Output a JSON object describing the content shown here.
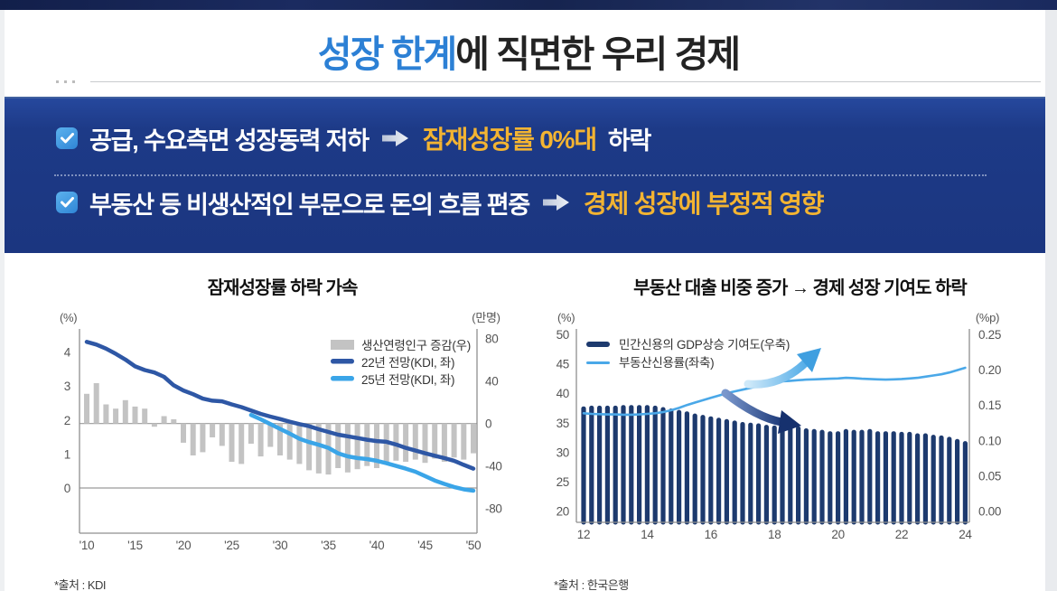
{
  "header": {
    "title_highlight": "성장 한계",
    "title_rest": "에 직면한 우리 경제"
  },
  "banner": {
    "items": [
      {
        "pre": "공급, 수요측면 ",
        "strong": "성장동력",
        "post": " 저하",
        "result_em": "잠재성장률 0%대",
        "result_post": " 하락"
      },
      {
        "pre": "부동산 등 ",
        "strong": "비생산적인 부문",
        "post": "으로 돈의 흐름 편중",
        "result_em": "경제 성장에 부정적 영향",
        "result_post": ""
      }
    ]
  },
  "chart_data": [
    {
      "type": "bar+line",
      "title": "잠재성장률 하락 가속",
      "source": "*출처 : KDI",
      "left_axis": {
        "unit": "(%)",
        "ticks": [
          4,
          3,
          2,
          1,
          0
        ]
      },
      "right_axis": {
        "unit": "(만명)",
        "ticks": [
          80,
          40,
          0,
          -40,
          -80
        ]
      },
      "x_tick_years": [
        2010,
        2015,
        2020,
        2025,
        2030,
        2035,
        2040,
        2045,
        2050
      ],
      "x_tick_labels": [
        "'10",
        "'15",
        "'20",
        "'25",
        "'30",
        "'35",
        "'40",
        "'45",
        "'50"
      ],
      "bars": {
        "label": "생산연령인구 증감(우)",
        "axis": "right",
        "color": "#c3c3c3",
        "start_year": 2010,
        "step": 1,
        "values": [
          28,
          38,
          18,
          14,
          22,
          16,
          14,
          -3,
          7,
          4,
          -18,
          -30,
          -27,
          -13,
          -21,
          -36,
          -38,
          -19,
          -31,
          -22,
          -30,
          -34,
          -38,
          -44,
          -47,
          -48,
          -42,
          -46,
          -43,
          -40,
          -42,
          -38,
          -35,
          -36,
          -34,
          -37,
          -33,
          -36,
          -32,
          -34,
          -28
        ]
      },
      "series": [
        {
          "label": "22년 전망(KDI, 좌)",
          "axis": "left",
          "color": "#2e57a5",
          "start_year": 2010,
          "step": 1,
          "values": [
            4.3,
            4.22,
            4.1,
            3.95,
            3.78,
            3.58,
            3.47,
            3.4,
            3.27,
            3.02,
            2.87,
            2.76,
            2.63,
            2.57,
            2.55,
            2.46,
            2.38,
            2.28,
            2.18,
            2.1,
            2.03,
            1.95,
            1.88,
            1.82,
            1.73,
            1.65,
            1.57,
            1.52,
            1.47,
            1.42,
            1.38,
            1.36,
            1.28,
            1.18,
            1.1,
            1.02,
            0.95,
            0.88,
            0.8,
            0.68,
            0.57
          ]
        },
        {
          "label": "25년 전망(KDI, 좌)",
          "axis": "left",
          "color": "#3aa5e8",
          "start_year": 2027,
          "step": 1,
          "values": [
            2.15,
            2.02,
            1.88,
            1.74,
            1.6,
            1.45,
            1.35,
            1.27,
            1.18,
            1.02,
            0.93,
            0.88,
            0.85,
            0.8,
            0.73,
            0.65,
            0.57,
            0.48,
            0.35,
            0.22,
            0.12,
            0.03,
            -0.04,
            -0.08
          ]
        }
      ]
    },
    {
      "type": "bar+line",
      "title": "부동산 대출 비중 증가 → 경제 성장 기여도 하락",
      "source": "*출처 : 한국은행",
      "left_axis": {
        "unit": "(%)",
        "ticks": [
          50,
          45,
          40,
          35,
          30,
          25,
          20
        ]
      },
      "right_axis": {
        "unit": "(%p)",
        "ticks": [
          "0.25",
          "0.20",
          "0.15",
          "0.10",
          "0.05",
          "0.00"
        ]
      },
      "x_tick_years": [
        2012,
        2014,
        2016,
        2018,
        2020,
        2022,
        2024
      ],
      "x_tick_labels": [
        "12",
        "14",
        "16",
        "18",
        "20",
        "22",
        "24"
      ],
      "bars": {
        "label": "민간신용의 GDP상승 기여도(우축)",
        "axis": "right",
        "color": "#1d3a6e",
        "start_year": 2012,
        "step": 0.25,
        "values": [
          0.148,
          0.149,
          0.149,
          0.149,
          0.149,
          0.15,
          0.15,
          0.15,
          0.15,
          0.149,
          0.147,
          0.145,
          0.143,
          0.141,
          0.138,
          0.136,
          0.134,
          0.132,
          0.13,
          0.128,
          0.126,
          0.125,
          0.124,
          0.122,
          0.121,
          0.121,
          0.12,
          0.12,
          0.117,
          0.116,
          0.115,
          0.113,
          0.113,
          0.116,
          0.115,
          0.115,
          0.116,
          0.113,
          0.113,
          0.113,
          0.112,
          0.112,
          0.11,
          0.11,
          0.108,
          0.107,
          0.105,
          0.102,
          0.099
        ]
      },
      "series": [
        {
          "label": "부동산신용률(좌축)",
          "axis": "left",
          "color": "#4aa8e8",
          "start_year": 2012,
          "step": 0.25,
          "values": [
            36.6,
            36.5,
            36.45,
            36.4,
            36.4,
            36.35,
            36.35,
            36.4,
            36.5,
            36.6,
            36.8,
            37.1,
            37.5,
            38.0,
            38.4,
            38.8,
            39.2,
            39.6,
            40.0,
            40.3,
            40.6,
            40.9,
            41.2,
            41.5,
            41.8,
            42.0,
            42.1,
            42.2,
            42.3,
            42.35,
            42.4,
            42.45,
            42.5,
            42.6,
            42.55,
            42.45,
            42.4,
            42.35,
            42.3,
            42.35,
            42.4,
            42.5,
            42.6,
            42.8,
            43.0,
            43.2,
            43.5,
            43.9,
            44.3
          ]
        }
      ],
      "annotations": [
        {
          "type": "curved-arrow",
          "direction": "up-right",
          "color": "#3f9fe0"
        },
        {
          "type": "curved-arrow",
          "direction": "down-right",
          "color": "#16316e"
        }
      ]
    }
  ]
}
